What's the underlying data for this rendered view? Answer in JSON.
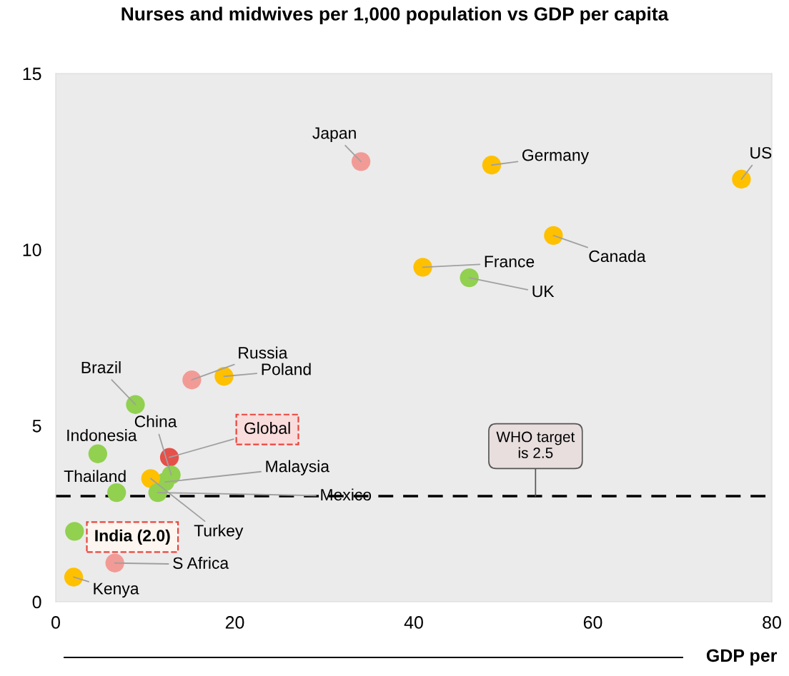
{
  "chart_data": {
    "type": "scatter",
    "title": "Nurses and midwives per 1,000 population vs GDP per capita",
    "xlabel": "GDP per",
    "x": [
      34.1,
      48.7,
      76.6,
      55.6,
      41.0,
      46.2,
      15.2,
      18.8,
      8.9,
      12.7,
      12.9,
      4.7,
      12.2,
      10.6,
      11.4,
      6.8,
      2.1,
      6.6,
      2.0
    ],
    "values": [
      12.5,
      12.4,
      12.0,
      10.4,
      9.5,
      9.2,
      6.3,
      6.4,
      5.6,
      4.1,
      3.6,
      4.2,
      3.4,
      3.5,
      3.1,
      3.1,
      2.0,
      1.1,
      0.7
    ],
    "colors": [
      "#f29b96",
      "#ffc000",
      "#ffc000",
      "#ffc000",
      "#ffc000",
      "#92d050",
      "#f29b96",
      "#ffc000",
      "#92d050",
      "#e5504a",
      "#92d050",
      "#92d050",
      "#92d050",
      "#ffc000",
      "#92d050",
      "#92d050",
      "#92d050",
      "#f29b96",
      "#ffc000"
    ],
    "annotations": [
      {
        "text": "Japan",
        "x": 34.1,
        "y": 12.5
      },
      {
        "text": "Germany",
        "x": 48.7,
        "y": 12.4
      },
      {
        "text": "US",
        "x": 76.6,
        "y": 12.0
      },
      {
        "text": "Canada",
        "x": 55.6,
        "y": 10.4
      },
      {
        "text": "France",
        "x": 41.0,
        "y": 9.5
      },
      {
        "text": "UK",
        "x": 46.2,
        "y": 9.2
      },
      {
        "text": "Russia",
        "x": 15.2,
        "y": 6.3
      },
      {
        "text": "Poland",
        "x": 18.8,
        "y": 6.4
      },
      {
        "text": "Brazil",
        "x": 8.9,
        "y": 5.6
      },
      {
        "text": "Global",
        "x": 12.7,
        "y": 4.1
      },
      {
        "text": "China",
        "x": 12.9,
        "y": 3.6
      },
      {
        "text": "Indonesia",
        "x": 4.7,
        "y": 4.2
      },
      {
        "text": "Malaysia",
        "x": 12.2,
        "y": 3.4
      },
      {
        "text": "Turkey",
        "x": 10.6,
        "y": 3.5
      },
      {
        "text": "Mexico",
        "x": 11.4,
        "y": 3.1
      },
      {
        "text": "Thailand",
        "x": 6.8,
        "y": 3.1
      },
      {
        "text": "India (2.0)",
        "x": 2.1,
        "y": 2.0
      },
      {
        "text": "S Africa",
        "x": 6.6,
        "y": 1.1
      },
      {
        "text": "Kenya",
        "x": 2.0,
        "y": 0.7
      },
      {
        "text": "WHO target\nis 2.5",
        "x": 53.6,
        "y": 3.0
      }
    ],
    "ref_lines": [
      {
        "axis": "y",
        "value": 3.0,
        "color": "#000000",
        "line_style": "dashed"
      }
    ],
    "xlim": [
      0,
      80
    ],
    "xticks": [
      0,
      20,
      40,
      60,
      80
    ],
    "ylim": [
      0,
      15
    ],
    "yticks": [
      0,
      5,
      10,
      15
    ],
    "grid": false
  }
}
